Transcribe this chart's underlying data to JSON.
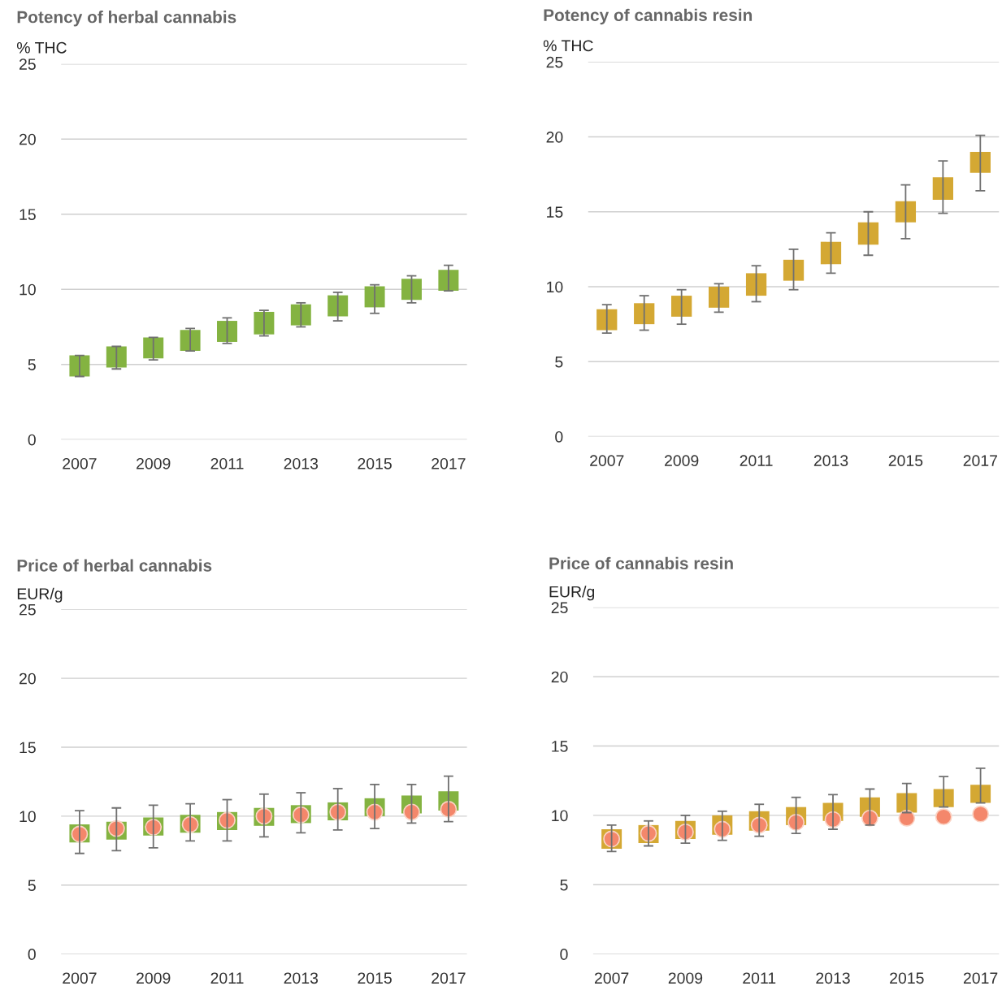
{
  "chart_data": [
    {
      "type": "candlestick",
      "title": "Potency of herbal cannabis",
      "ylabel": "% THC",
      "color": "#84b341",
      "grid": "y",
      "x": [
        2007,
        2008,
        2009,
        2010,
        2011,
        2012,
        2013,
        2014,
        2015,
        2016,
        2017
      ],
      "ohlc": [
        [
          4.2,
          5.6,
          4.2,
          5.6
        ],
        [
          4.8,
          6.2,
          4.7,
          6.2
        ],
        [
          5.4,
          6.8,
          5.3,
          6.8
        ],
        [
          5.9,
          7.4,
          5.9,
          7.3
        ],
        [
          6.5,
          8.1,
          6.4,
          7.9
        ],
        [
          7.0,
          8.6,
          6.9,
          8.5
        ],
        [
          7.6,
          9.1,
          7.5,
          9.0
        ],
        [
          8.2,
          9.8,
          7.9,
          9.6
        ],
        [
          8.8,
          10.3,
          8.4,
          10.2
        ],
        [
          9.3,
          10.9,
          9.1,
          10.7
        ],
        [
          9.9,
          11.6,
          9.9,
          11.3
        ]
      ],
      "xlim": [
        2006.5,
        2017.5
      ],
      "xticks": [
        2007,
        2009,
        2011,
        2013,
        2015,
        2017
      ],
      "ylim": [
        0,
        25
      ],
      "yticks": [
        0,
        5,
        10,
        15,
        20,
        25
      ]
    },
    {
      "type": "candlestick",
      "title": "Potency of cannabis resin",
      "ylabel": "% THC",
      "color": "#d4a833",
      "grid": "y",
      "x": [
        2007,
        2008,
        2009,
        2010,
        2011,
        2012,
        2013,
        2014,
        2015,
        2016,
        2017
      ],
      "ohlc": [
        [
          7.1,
          8.8,
          6.9,
          8.5
        ],
        [
          7.5,
          9.4,
          7.1,
          8.9
        ],
        [
          8.0,
          9.8,
          7.5,
          9.4
        ],
        [
          8.6,
          10.2,
          8.3,
          10.0
        ],
        [
          9.4,
          11.4,
          9.0,
          10.9
        ],
        [
          10.4,
          12.5,
          9.8,
          11.8
        ],
        [
          11.5,
          13.6,
          10.9,
          13.0
        ],
        [
          12.8,
          15.0,
          12.1,
          14.3
        ],
        [
          14.3,
          16.8,
          13.2,
          15.7
        ],
        [
          15.8,
          18.4,
          14.9,
          17.3
        ],
        [
          17.6,
          20.1,
          16.4,
          19.0
        ]
      ],
      "xlim": [
        2006.5,
        2017.5
      ],
      "xticks": [
        2007,
        2009,
        2011,
        2013,
        2015,
        2017
      ],
      "ylim": [
        0,
        25
      ],
      "yticks": [
        0,
        5,
        10,
        15,
        20,
        25
      ]
    },
    {
      "type": "candlestick",
      "title": "Price of herbal cannabis",
      "ylabel": "EUR/g",
      "color": "#84b341",
      "grid": "y",
      "x": [
        2007,
        2008,
        2009,
        2010,
        2011,
        2012,
        2013,
        2014,
        2015,
        2016,
        2017
      ],
      "ohlc": [
        [
          8.1,
          10.4,
          7.3,
          9.4
        ],
        [
          8.3,
          10.6,
          7.5,
          9.6
        ],
        [
          8.6,
          10.8,
          7.7,
          9.9
        ],
        [
          8.8,
          10.9,
          8.2,
          10.1
        ],
        [
          9.0,
          11.2,
          8.2,
          10.3
        ],
        [
          9.3,
          11.6,
          8.5,
          10.6
        ],
        [
          9.5,
          11.7,
          8.8,
          10.8
        ],
        [
          9.7,
          12.0,
          9.0,
          11.0
        ],
        [
          10.0,
          12.3,
          9.1,
          11.3
        ],
        [
          10.2,
          12.3,
          9.5,
          11.5
        ],
        [
          10.4,
          12.9,
          9.6,
          11.8
        ]
      ],
      "series": [
        {
          "type": "scatter",
          "color": "#f4876b",
          "marker": "circle",
          "values": [
            8.7,
            9.1,
            9.2,
            9.4,
            9.7,
            10.0,
            10.1,
            10.3,
            10.3,
            10.3,
            10.5
          ]
        }
      ],
      "xlim": [
        2006.5,
        2017.5
      ],
      "xticks": [
        2007,
        2009,
        2011,
        2013,
        2015,
        2017
      ],
      "ylim": [
        0,
        25
      ],
      "yticks": [
        0,
        5,
        10,
        15,
        20,
        25
      ]
    },
    {
      "type": "candlestick",
      "title": "Price of cannabis resin",
      "ylabel": "EUR/g",
      "color": "#d4a833",
      "grid": "y",
      "x": [
        2007,
        2008,
        2009,
        2010,
        2011,
        2012,
        2013,
        2014,
        2015,
        2016,
        2017
      ],
      "ohlc": [
        [
          7.6,
          9.3,
          7.4,
          9.0
        ],
        [
          8.0,
          9.6,
          7.8,
          9.3
        ],
        [
          8.3,
          10.0,
          8.0,
          9.6
        ],
        [
          8.6,
          10.3,
          8.2,
          10.0
        ],
        [
          8.9,
          10.8,
          8.5,
          10.3
        ],
        [
          9.3,
          11.3,
          8.7,
          10.6
        ],
        [
          9.6,
          11.5,
          9.0,
          10.9
        ],
        [
          9.9,
          11.9,
          9.3,
          11.3
        ],
        [
          10.2,
          12.3,
          10.2,
          11.6
        ],
        [
          10.6,
          12.8,
          10.6,
          11.9
        ],
        [
          10.9,
          13.4,
          10.9,
          12.2
        ]
      ],
      "series": [
        {
          "type": "scatter",
          "color": "#f4876b",
          "marker": "circle",
          "values": [
            8.3,
            8.7,
            8.8,
            9.0,
            9.3,
            9.5,
            9.7,
            9.8,
            9.8,
            9.9,
            10.1
          ]
        }
      ],
      "xlim": [
        2006.5,
        2017.5
      ],
      "xticks": [
        2007,
        2009,
        2011,
        2013,
        2015,
        2017
      ],
      "ylim": [
        0,
        25
      ],
      "yticks": [
        0,
        5,
        10,
        15,
        20,
        25
      ]
    }
  ]
}
